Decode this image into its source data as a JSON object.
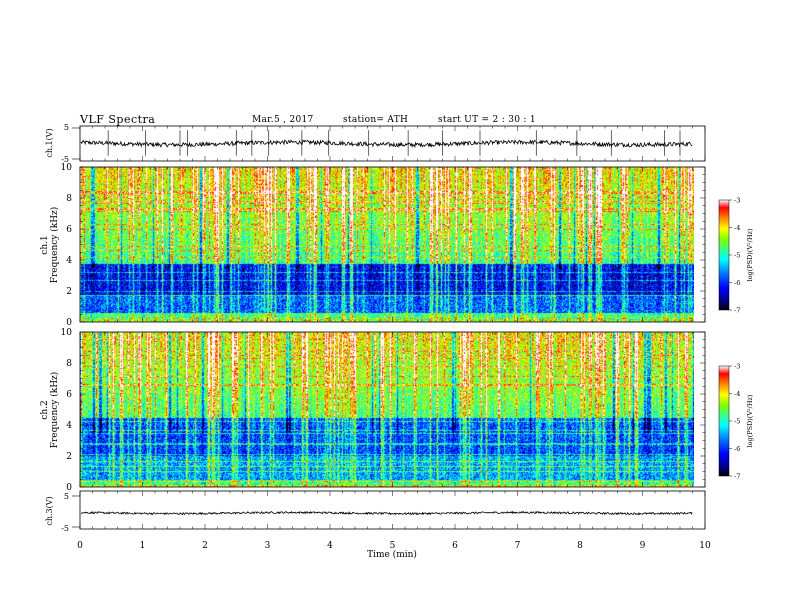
{
  "header": {
    "title": "VLF  Spectra",
    "date": "Mar.5  , 2017",
    "station": "station= ATH",
    "start": "start  UT  =   2  : 30 : 1"
  },
  "colors": {
    "axis": "#000000",
    "waveform": "#000000",
    "colormap": [
      "#000000",
      "#00007f",
      "#0000ff",
      "#007fff",
      "#00ffff",
      "#3fff7f",
      "#7fff00",
      "#ffff00",
      "#ff7f00",
      "#ff0000",
      "#ffffff"
    ]
  },
  "chart_data": [
    {
      "type": "line",
      "panel": "ch1-waveform",
      "ylabel": "ch.1(V)",
      "ylim": [
        -5,
        5
      ],
      "yticks": [
        5,
        -5
      ],
      "xlim": [
        0,
        10
      ],
      "baseline_level": 0,
      "noise_amplitude": 0.6,
      "spike_times_min": [
        0.45,
        1.05,
        1.6,
        1.72,
        2.5,
        2.75,
        3.02,
        3.55,
        3.98,
        4.62,
        5.25,
        5.8,
        6.4,
        7.3,
        7.95,
        8.5,
        9.35,
        9.6
      ]
    },
    {
      "type": "heatmap",
      "panel": "ch1-spectrogram",
      "ylabel": "ch.1\nFrequency  (kHz)",
      "xlim": [
        0,
        10
      ],
      "data_xmax": 9.8,
      "ylim": [
        0,
        10
      ],
      "yticks": [
        0,
        2,
        4,
        6,
        8,
        10
      ],
      "colorbar": {
        "label": "log(PSD)(V²/Hz)",
        "range": [
          -7,
          -3
        ],
        "ticks": [
          -3,
          -4,
          -5,
          -6,
          -7
        ]
      }
    },
    {
      "type": "heatmap",
      "panel": "ch2-spectrogram",
      "ylabel": "ch.2\nFrequency  (kHz)",
      "xlim": [
        0,
        10
      ],
      "data_xmax": 9.8,
      "ylim": [
        0,
        10
      ],
      "yticks": [
        0,
        2,
        4,
        6,
        8,
        10
      ],
      "colorbar": {
        "label": "log(PSD)(V²/Hz)",
        "range": [
          -7,
          -3
        ],
        "ticks": [
          -3,
          -4,
          -5,
          -6,
          -7
        ]
      }
    },
    {
      "type": "line",
      "panel": "ch3-waveform",
      "ylabel": "ch.3(V)",
      "ylim": [
        -5,
        5
      ],
      "yticks": [
        5,
        -5
      ],
      "xlim": [
        0,
        10
      ],
      "baseline_level": -0.8,
      "noise_amplitude": 0.25
    }
  ],
  "xaxis": {
    "label": "Time  (min)",
    "ticks": [
      0,
      1,
      2,
      3,
      4,
      5,
      6,
      7,
      8,
      9,
      10
    ]
  }
}
